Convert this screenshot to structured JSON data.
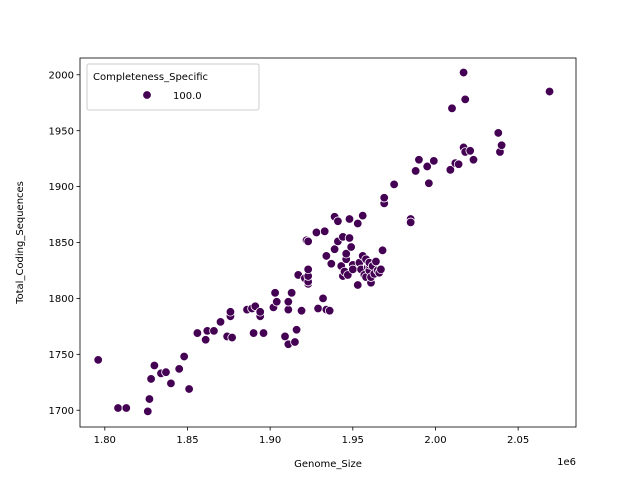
{
  "chart_data": {
    "type": "scatter",
    "xlabel": "Genome_Size",
    "ylabel": "Total_Coding_Sequences",
    "x_offset_label": "1e6",
    "x_multiplier": 1000000,
    "xlim": [
      1.785,
      2.085
    ],
    "ylim": [
      1685,
      2015
    ],
    "x_ticks": [
      1.8,
      1.85,
      1.9,
      1.95,
      2.0,
      2.05
    ],
    "x_tick_labels": [
      "1.80",
      "1.85",
      "1.90",
      "1.95",
      "2.00",
      "2.05"
    ],
    "y_ticks": [
      1700,
      1750,
      1800,
      1850,
      1900,
      1950,
      2000
    ],
    "y_tick_labels": [
      "1700",
      "1750",
      "1800",
      "1850",
      "1900",
      "1950",
      "2000"
    ],
    "grid": false,
    "legend": {
      "title": "Completeness_Specific",
      "placement": "top-left",
      "entries": [
        {
          "label": "100.0",
          "color": "#440154"
        }
      ]
    },
    "series": [
      {
        "name": "100.0",
        "color": "#440154",
        "points": [
          [
            1.796,
            1745
          ],
          [
            1.808,
            1702
          ],
          [
            1.813,
            1702
          ],
          [
            1.826,
            1699
          ],
          [
            1.827,
            1710
          ],
          [
            1.828,
            1728
          ],
          [
            1.83,
            1740
          ],
          [
            1.834,
            1733
          ],
          [
            1.837,
            1734
          ],
          [
            1.84,
            1724
          ],
          [
            1.845,
            1737
          ],
          [
            1.848,
            1748
          ],
          [
            1.851,
            1719
          ],
          [
            1.856,
            1769
          ],
          [
            1.861,
            1763
          ],
          [
            1.862,
            1771
          ],
          [
            1.866,
            1771
          ],
          [
            1.87,
            1779
          ],
          [
            1.874,
            1766
          ],
          [
            1.876,
            1784
          ],
          [
            1.876,
            1788
          ],
          [
            1.877,
            1765
          ],
          [
            1.886,
            1790
          ],
          [
            1.889,
            1791
          ],
          [
            1.89,
            1769
          ],
          [
            1.891,
            1793
          ],
          [
            1.894,
            1784
          ],
          [
            1.894,
            1788
          ],
          [
            1.896,
            1769
          ],
          [
            1.902,
            1792
          ],
          [
            1.903,
            1805
          ],
          [
            1.904,
            1797
          ],
          [
            1.909,
            1766
          ],
          [
            1.911,
            1759
          ],
          [
            1.911,
            1790
          ],
          [
            1.911,
            1797
          ],
          [
            1.913,
            1805
          ],
          [
            1.915,
            1761
          ],
          [
            1.916,
            1772
          ],
          [
            1.917,
            1821
          ],
          [
            1.919,
            1789
          ],
          [
            1.921,
            1818
          ],
          [
            1.922,
            1852
          ],
          [
            1.923,
            1851
          ],
          [
            1.923,
            1813
          ],
          [
            1.923,
            1815
          ],
          [
            1.923,
            1820
          ],
          [
            1.923,
            1826
          ],
          [
            1.928,
            1859
          ],
          [
            1.929,
            1791
          ],
          [
            1.932,
            1800
          ],
          [
            1.933,
            1860
          ],
          [
            1.934,
            1838
          ],
          [
            1.934,
            1790
          ],
          [
            1.936,
            1789
          ],
          [
            1.937,
            1831
          ],
          [
            1.939,
            1844
          ],
          [
            1.939,
            1873
          ],
          [
            1.941,
            1851
          ],
          [
            1.941,
            1869
          ],
          [
            1.943,
            1829
          ],
          [
            1.944,
            1855
          ],
          [
            1.944,
            1820
          ],
          [
            1.945,
            1824
          ],
          [
            1.946,
            1835
          ],
          [
            1.946,
            1840
          ],
          [
            1.947,
            1821
          ],
          [
            1.948,
            1871
          ],
          [
            1.948,
            1854
          ],
          [
            1.949,
            1846
          ],
          [
            1.95,
            1830
          ],
          [
            1.95,
            1826
          ],
          [
            1.953,
            1812
          ],
          [
            1.953,
            1867
          ],
          [
            1.954,
            1832
          ],
          [
            1.955,
            1826
          ],
          [
            1.956,
            1838
          ],
          [
            1.956,
            1874
          ],
          [
            1.957,
            1821
          ],
          [
            1.958,
            1819
          ],
          [
            1.958,
            1835
          ],
          [
            1.959,
            1828
          ],
          [
            1.96,
            1825
          ],
          [
            1.96,
            1830
          ],
          [
            1.96,
            1832
          ],
          [
            1.961,
            1814
          ],
          [
            1.961,
            1819
          ],
          [
            1.962,
            1829
          ],
          [
            1.963,
            1822
          ],
          [
            1.964,
            1833
          ],
          [
            1.965,
            1825
          ],
          [
            1.966,
            1823
          ],
          [
            1.967,
            1826
          ],
          [
            1.968,
            1843
          ],
          [
            1.969,
            1885
          ],
          [
            1.969,
            1890
          ],
          [
            1.975,
            1902
          ],
          [
            1.985,
            1871
          ],
          [
            1.985,
            1868
          ],
          [
            1.988,
            1914
          ],
          [
            1.99,
            1924
          ],
          [
            1.995,
            1918
          ],
          [
            1.996,
            1903
          ],
          [
            1.999,
            1923
          ],
          [
            2.009,
            1915
          ],
          [
            2.01,
            1970
          ],
          [
            2.012,
            1921
          ],
          [
            2.014,
            1920
          ],
          [
            2.017,
            1935
          ],
          [
            2.018,
            1931
          ],
          [
            2.017,
            2002
          ],
          [
            2.018,
            1978
          ],
          [
            2.021,
            1932
          ],
          [
            2.023,
            1924
          ],
          [
            2.038,
            1948
          ],
          [
            2.039,
            1931
          ],
          [
            2.04,
            1937
          ],
          [
            2.069,
            1985
          ]
        ]
      }
    ]
  }
}
